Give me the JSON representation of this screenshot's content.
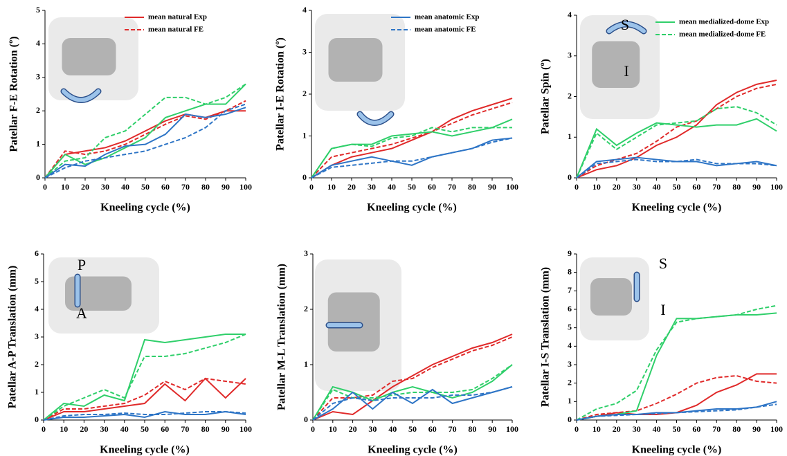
{
  "chart_data": [
    {
      "type": "line",
      "ylabel": "Patellar F-E Rotation (º)",
      "xlabel": "Kneeling cycle (%)",
      "x": [
        0,
        10,
        20,
        30,
        40,
        50,
        60,
        70,
        80,
        90,
        100
      ],
      "xlim": [
        0,
        100
      ],
      "xticks": [
        0,
        10,
        20,
        30,
        40,
        50,
        60,
        70,
        80,
        90,
        100
      ],
      "ylim": [
        0,
        5
      ],
      "yticks": [
        0,
        1,
        2,
        3,
        4,
        5
      ],
      "legend": "upper right",
      "series": [
        {
          "name": "mean natural Exp",
          "color": "#e02a2a",
          "dash": false,
          "values": [
            0,
            0.7,
            0.8,
            0.9,
            1.1,
            1.4,
            1.7,
            1.9,
            1.8,
            2.0,
            2.0
          ]
        },
        {
          "name": "mean natural FE",
          "color": "#e02a2a",
          "dash": true,
          "values": [
            0,
            0.8,
            0.7,
            0.8,
            1.0,
            1.3,
            1.6,
            1.85,
            1.75,
            2.0,
            2.3
          ]
        },
        {
          "color": "#2fcf6a",
          "dash": false,
          "values": [
            0,
            0.7,
            0.4,
            0.6,
            0.9,
            1.2,
            1.8,
            2.0,
            2.2,
            2.2,
            2.8
          ]
        },
        {
          "color": "#2fcf6a",
          "dash": true,
          "values": [
            0,
            0.5,
            0.6,
            1.2,
            1.4,
            1.9,
            2.4,
            2.4,
            2.2,
            2.4,
            2.8
          ]
        },
        {
          "color": "#2e75c6",
          "dash": false,
          "values": [
            0,
            0.4,
            0.35,
            0.7,
            0.95,
            1.0,
            1.3,
            1.9,
            1.8,
            1.9,
            2.1
          ]
        },
        {
          "color": "#2e75c6",
          "dash": true,
          "values": [
            0,
            0.3,
            0.5,
            0.6,
            0.7,
            0.8,
            1.0,
            1.2,
            1.5,
            2.0,
            2.2
          ]
        }
      ]
    },
    {
      "type": "line",
      "ylabel": "Patellar I-E Rotation (º)",
      "xlabel": "Kneeling cycle (%)",
      "x": [
        0,
        10,
        20,
        30,
        40,
        50,
        60,
        70,
        80,
        90,
        100
      ],
      "xlim": [
        0,
        100
      ],
      "xticks": [
        0,
        10,
        20,
        30,
        40,
        50,
        60,
        70,
        80,
        90,
        100
      ],
      "ylim": [
        0,
        4
      ],
      "yticks": [
        0,
        1,
        2,
        3,
        4
      ],
      "legend": "upper right",
      "series": [
        {
          "color": "#e02a2a",
          "dash": false,
          "values": [
            0,
            0.3,
            0.5,
            0.6,
            0.7,
            0.9,
            1.1,
            1.4,
            1.6,
            1.75,
            1.9
          ]
        },
        {
          "color": "#e02a2a",
          "dash": true,
          "values": [
            0,
            0.5,
            0.6,
            0.7,
            0.8,
            0.95,
            1.1,
            1.3,
            1.5,
            1.65,
            1.8
          ]
        },
        {
          "color": "#2fcf6a",
          "dash": false,
          "values": [
            0,
            0.7,
            0.8,
            0.8,
            1.0,
            1.05,
            1.1,
            1.0,
            1.1,
            1.2,
            1.4
          ]
        },
        {
          "color": "#2fcf6a",
          "dash": true,
          "values": [
            0,
            0.7,
            0.8,
            0.75,
            0.95,
            1.0,
            1.2,
            1.1,
            1.2,
            1.2,
            1.2
          ]
        },
        {
          "name": "mean anatomic Exp",
          "color": "#2e75c6",
          "dash": false,
          "values": [
            0,
            0.3,
            0.4,
            0.5,
            0.4,
            0.3,
            0.5,
            0.6,
            0.7,
            0.9,
            0.95
          ]
        },
        {
          "name": "mean anatomic FE",
          "color": "#2e75c6",
          "dash": true,
          "values": [
            0,
            0.25,
            0.3,
            0.35,
            0.4,
            0.4,
            0.5,
            0.6,
            0.7,
            0.85,
            0.95
          ]
        }
      ]
    },
    {
      "type": "line",
      "ylabel": "Patellar Spin (º)",
      "xlabel": "Kneeling cycle (%)",
      "x": [
        0,
        10,
        20,
        30,
        40,
        50,
        60,
        70,
        80,
        90,
        100
      ],
      "xlim": [
        0,
        100
      ],
      "xticks": [
        0,
        10,
        20,
        30,
        40,
        50,
        60,
        70,
        80,
        90,
        100
      ],
      "ylim": [
        0,
        4
      ],
      "yticks": [
        0,
        1,
        2,
        3,
        4
      ],
      "legend": "upper right",
      "annotations": [
        "S",
        "I"
      ],
      "series": [
        {
          "color": "#e02a2a",
          "dash": false,
          "values": [
            0,
            0.2,
            0.3,
            0.5,
            0.8,
            1.0,
            1.3,
            1.8,
            2.1,
            2.3,
            2.4
          ]
        },
        {
          "color": "#e02a2a",
          "dash": true,
          "values": [
            0,
            0.3,
            0.45,
            0.6,
            0.9,
            1.25,
            1.4,
            1.7,
            2.0,
            2.2,
            2.3
          ]
        },
        {
          "name": "mean medialized-dome Exp",
          "color": "#2fcf6a",
          "dash": false,
          "values": [
            0,
            1.2,
            0.8,
            1.1,
            1.35,
            1.3,
            1.25,
            1.3,
            1.3,
            1.45,
            1.15
          ]
        },
        {
          "name": "mean medialized-dome FE",
          "color": "#2fcf6a",
          "dash": true,
          "values": [
            0,
            1.1,
            0.7,
            1.0,
            1.3,
            1.35,
            1.4,
            1.7,
            1.75,
            1.6,
            1.3
          ]
        },
        {
          "color": "#2e75c6",
          "dash": false,
          "values": [
            0,
            0.4,
            0.45,
            0.5,
            0.45,
            0.4,
            0.4,
            0.3,
            0.35,
            0.4,
            0.3
          ]
        },
        {
          "color": "#2e75c6",
          "dash": true,
          "values": [
            0,
            0.35,
            0.4,
            0.45,
            0.4,
            0.4,
            0.45,
            0.35,
            0.35,
            0.35,
            0.3
          ]
        }
      ]
    },
    {
      "type": "line",
      "ylabel": "Patellar A-P Translation (mm)",
      "xlabel": "Kneeling cycle (%)",
      "x": [
        0,
        10,
        20,
        30,
        40,
        50,
        60,
        70,
        80,
        90,
        100
      ],
      "xlim": [
        0,
        100
      ],
      "xticks": [
        0,
        10,
        20,
        30,
        40,
        50,
        60,
        70,
        80,
        90,
        100
      ],
      "ylim": [
        0,
        6
      ],
      "yticks": [
        0,
        1,
        2,
        3,
        4,
        5,
        6
      ],
      "annotations": [
        "P",
        "A"
      ],
      "series": [
        {
          "color": "#e02a2a",
          "dash": false,
          "values": [
            0,
            0.3,
            0.3,
            0.4,
            0.5,
            0.6,
            1.3,
            0.7,
            1.5,
            0.8,
            1.5
          ]
        },
        {
          "color": "#e02a2a",
          "dash": true,
          "values": [
            0,
            0.4,
            0.4,
            0.5,
            0.6,
            0.9,
            1.4,
            1.1,
            1.5,
            1.4,
            1.3
          ]
        },
        {
          "color": "#2fcf6a",
          "dash": false,
          "values": [
            0,
            0.6,
            0.5,
            0.9,
            0.7,
            2.9,
            2.8,
            2.9,
            3.0,
            3.1,
            3.1
          ]
        },
        {
          "color": "#2fcf6a",
          "dash": true,
          "values": [
            0,
            0.5,
            0.8,
            1.1,
            0.8,
            2.3,
            2.3,
            2.4,
            2.6,
            2.8,
            3.1
          ]
        },
        {
          "color": "#2e75c6",
          "dash": false,
          "values": [
            0,
            0.1,
            0.1,
            0.15,
            0.2,
            0.1,
            0.3,
            0.2,
            0.2,
            0.3,
            0.2
          ]
        },
        {
          "color": "#2e75c6",
          "dash": true,
          "values": [
            0,
            0.15,
            0.2,
            0.2,
            0.25,
            0.2,
            0.2,
            0.25,
            0.3,
            0.3,
            0.25
          ]
        }
      ]
    },
    {
      "type": "line",
      "ylabel": "Patellar M-L Translation (mm)",
      "xlabel": "Kneeling cycle (%)",
      "x": [
        0,
        10,
        20,
        30,
        40,
        50,
        60,
        70,
        80,
        90,
        100
      ],
      "xlim": [
        0,
        100
      ],
      "xticks": [
        0,
        10,
        20,
        30,
        40,
        50,
        60,
        70,
        80,
        90,
        100
      ],
      "ylim": [
        0,
        3
      ],
      "yticks": [
        0,
        1,
        2,
        3
      ],
      "series": [
        {
          "color": "#e02a2a",
          "dash": false,
          "values": [
            0,
            0.15,
            0.1,
            0.35,
            0.6,
            0.8,
            1.0,
            1.15,
            1.3,
            1.4,
            1.55
          ]
        },
        {
          "color": "#e02a2a",
          "dash": true,
          "values": [
            0,
            0.4,
            0.4,
            0.45,
            0.7,
            0.75,
            0.95,
            1.1,
            1.25,
            1.35,
            1.5
          ]
        },
        {
          "color": "#2fcf6a",
          "dash": false,
          "values": [
            0,
            0.6,
            0.5,
            0.35,
            0.5,
            0.6,
            0.5,
            0.4,
            0.5,
            0.7,
            1.0
          ]
        },
        {
          "color": "#2fcf6a",
          "dash": true,
          "values": [
            0,
            0.55,
            0.4,
            0.4,
            0.45,
            0.5,
            0.5,
            0.5,
            0.55,
            0.75,
            1.0
          ]
        },
        {
          "color": "#2e75c6",
          "dash": false,
          "values": [
            0,
            0.2,
            0.5,
            0.2,
            0.5,
            0.3,
            0.55,
            0.3,
            0.4,
            0.5,
            0.6
          ]
        },
        {
          "color": "#2e75c6",
          "dash": true,
          "values": [
            0,
            0.3,
            0.4,
            0.35,
            0.4,
            0.4,
            0.4,
            0.45,
            0.45,
            0.5,
            0.6
          ]
        }
      ]
    },
    {
      "type": "line",
      "ylabel": "Patellar I-S Translation (mm)",
      "xlabel": "Kneeling cycle (%)",
      "x": [
        0,
        10,
        20,
        30,
        40,
        50,
        60,
        70,
        80,
        90,
        100
      ],
      "xlim": [
        0,
        100
      ],
      "xticks": [
        0,
        10,
        20,
        30,
        40,
        50,
        60,
        70,
        80,
        90,
        100
      ],
      "ylim": [
        0,
        9
      ],
      "yticks": [
        0,
        1,
        2,
        3,
        4,
        5,
        6,
        7,
        8,
        9
      ],
      "annotations": [
        "S",
        "I"
      ],
      "series": [
        {
          "color": "#e02a2a",
          "dash": false,
          "values": [
            0,
            0.2,
            0.4,
            0.3,
            0.3,
            0.4,
            0.8,
            1.5,
            1.9,
            2.5,
            2.5
          ]
        },
        {
          "color": "#e02a2a",
          "dash": true,
          "values": [
            0,
            0.3,
            0.4,
            0.5,
            0.9,
            1.4,
            2.0,
            2.3,
            2.4,
            2.1,
            2.0
          ]
        },
        {
          "color": "#2fcf6a",
          "dash": false,
          "values": [
            0,
            0.2,
            0.3,
            0.5,
            3.5,
            5.5,
            5.5,
            5.6,
            5.7,
            5.7,
            5.8
          ]
        },
        {
          "color": "#2fcf6a",
          "dash": true,
          "values": [
            0,
            0.6,
            0.9,
            1.6,
            3.8,
            5.3,
            5.5,
            5.6,
            5.7,
            6.0,
            6.2
          ]
        },
        {
          "color": "#2e75c6",
          "dash": false,
          "values": [
            0,
            0.2,
            0.3,
            0.3,
            0.4,
            0.4,
            0.5,
            0.6,
            0.6,
            0.7,
            1.0
          ]
        },
        {
          "color": "#2e75c6",
          "dash": true,
          "values": [
            0,
            0.2,
            0.25,
            0.3,
            0.35,
            0.4,
            0.45,
            0.5,
            0.55,
            0.7,
            0.85
          ]
        }
      ]
    }
  ]
}
